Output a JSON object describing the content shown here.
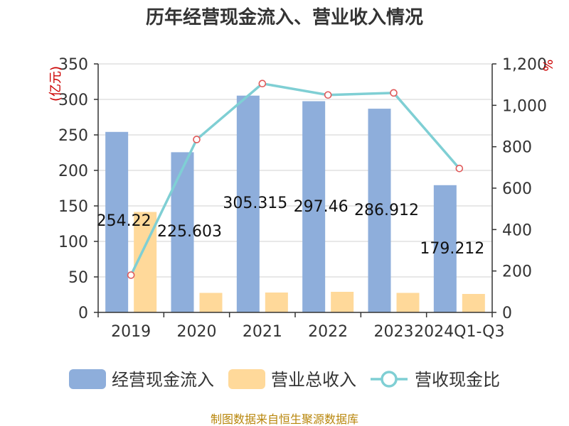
{
  "title": "历年经营现金流入、营业收入情况",
  "source": "制图数据来自恒生聚源数据库",
  "colors": {
    "cash": "#8eaedb",
    "revenue": "#ffd99a",
    "ratio": "#7fcfd4"
  },
  "chart_data": {
    "type": "bar+line",
    "categories": [
      "2019",
      "2020",
      "2021",
      "2022",
      "2023",
      "2024Q1-Q3"
    ],
    "y_left": {
      "label": "(亿元)",
      "range": [
        0,
        350
      ],
      "ticks": [
        0,
        50,
        100,
        150,
        200,
        250,
        300,
        350
      ]
    },
    "y_right": {
      "label": "%",
      "range": [
        0,
        1200
      ],
      "ticks": [
        0,
        200,
        400,
        600,
        800,
        1000,
        1200
      ],
      "tick_labels": [
        "0",
        "200",
        "400",
        "600",
        "800",
        "1,000",
        "1,200"
      ]
    },
    "series": [
      {
        "name": "经营现金流入",
        "type": "bar",
        "axis": "left",
        "values": [
          254.22,
          225.603,
          305.315,
          297.46,
          286.912,
          179.212
        ],
        "labels": [
          "254.22",
          "225.603",
          "305.315",
          "297.46",
          "286.912",
          "179.212"
        ]
      },
      {
        "name": "营业总收入",
        "type": "bar",
        "axis": "left",
        "values": [
          141.5,
          27.5,
          28,
          29,
          27.5,
          26
        ]
      },
      {
        "name": "营收现金比",
        "type": "line",
        "axis": "right",
        "values": [
          180,
          835,
          1105,
          1050,
          1060,
          695
        ]
      }
    ],
    "grid": true,
    "legend": "bottom"
  }
}
